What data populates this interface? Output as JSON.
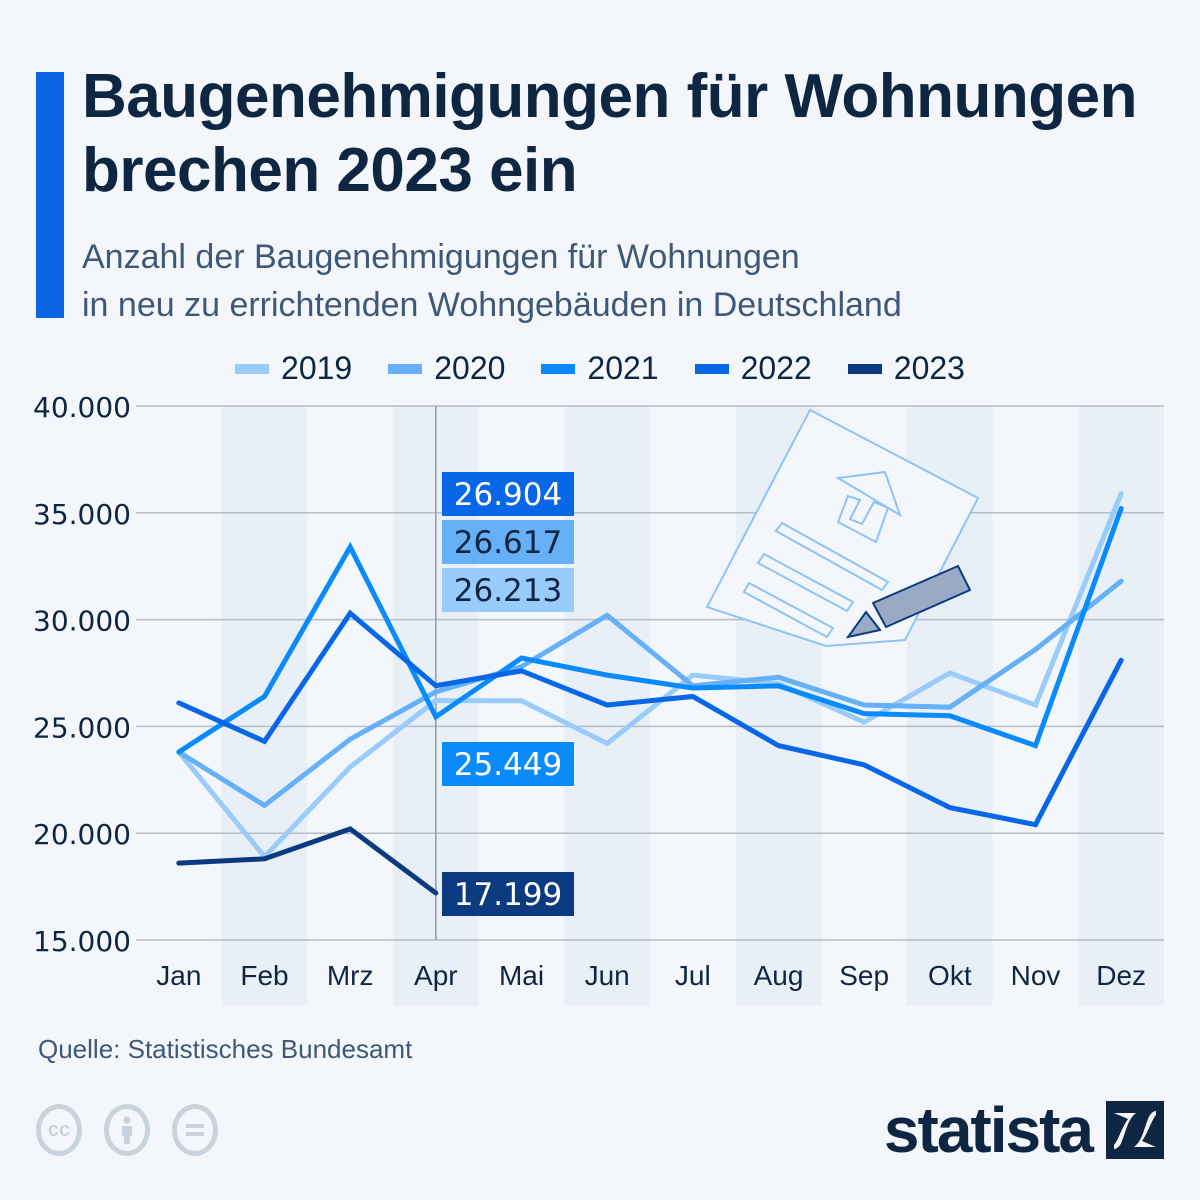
{
  "header": {
    "title": "Baugenehmigungen für Wohnungen brechen 2023 ein",
    "subtitle_line1": "Anzahl der Baugenehmigungen für Wohnungen",
    "subtitle_line2": "in neu zu errichtenden Wohngebäuden in Deutschland",
    "accent_color": "#0b66e4"
  },
  "footer": {
    "source": "Quelle: Statistisches Bundesamt",
    "license_icons": [
      "cc-icon",
      "attribution-icon",
      "no-derivatives-icon"
    ],
    "logo_text": "statista"
  },
  "chart_data": {
    "type": "line",
    "title": "Baugenehmigungen für Wohnungen brechen 2023 ein",
    "subtitle": "Anzahl der Baugenehmigungen für Wohnungen in neu zu errichtenden Wohngebäuden in Deutschland",
    "xlabel": "",
    "ylabel": "",
    "categories": [
      "Jan",
      "Feb",
      "Mrz",
      "Apr",
      "Mai",
      "Jun",
      "Jul",
      "Aug",
      "Sep",
      "Okt",
      "Nov",
      "Dez"
    ],
    "ylim": [
      15000,
      40000
    ],
    "yticks": [
      40000,
      35000,
      30000,
      25000,
      20000,
      15000
    ],
    "ytick_labels": [
      "40.000",
      "35.000",
      "30.000",
      "25.000",
      "20.000",
      "15.000"
    ],
    "grid": true,
    "legend_position": "top-center",
    "highlight_category": "Apr",
    "series": [
      {
        "name": "2019",
        "color": "#99ccfa",
        "values": [
          23800,
          18900,
          23100,
          26213,
          26200,
          24200,
          27400,
          27000,
          25200,
          27500,
          26000,
          35900
        ]
      },
      {
        "name": "2020",
        "color": "#66b0f8",
        "values": [
          23800,
          21300,
          24400,
          26617,
          27800,
          30200,
          26900,
          27300,
          26000,
          25900,
          28600,
          31800
        ]
      },
      {
        "name": "2021",
        "color": "#0a8bfc",
        "values": [
          23800,
          26400,
          33400,
          25449,
          28200,
          27400,
          26800,
          26900,
          25600,
          25500,
          24100,
          35200
        ]
      },
      {
        "name": "2022",
        "color": "#0767e6",
        "values": [
          26100,
          24300,
          30300,
          26904,
          27600,
          26000,
          26400,
          24100,
          23200,
          21200,
          20400,
          28100
        ]
      },
      {
        "name": "2023",
        "color": "#0b3a80",
        "values": [
          18600,
          18800,
          20200,
          17199
        ]
      }
    ],
    "annotations": [
      {
        "series": "2022",
        "category": "Apr",
        "label": "26.904",
        "bg": "#0767e6",
        "text_color": "#ffffff"
      },
      {
        "series": "2020",
        "category": "Apr",
        "label": "26.617",
        "bg": "#66b0f8",
        "text_color": "#0f2643"
      },
      {
        "series": "2019",
        "category": "Apr",
        "label": "26.213",
        "bg": "#99ccfa",
        "text_color": "#0f2643"
      },
      {
        "series": "2021",
        "category": "Apr",
        "label": "25.449",
        "bg": "#0a8bfc",
        "text_color": "#ffffff"
      },
      {
        "series": "2023",
        "category": "Apr",
        "label": "17.199",
        "bg": "#0b3a80",
        "text_color": "#ffffff"
      }
    ],
    "illustration": "building-permit-document-with-pencil"
  }
}
